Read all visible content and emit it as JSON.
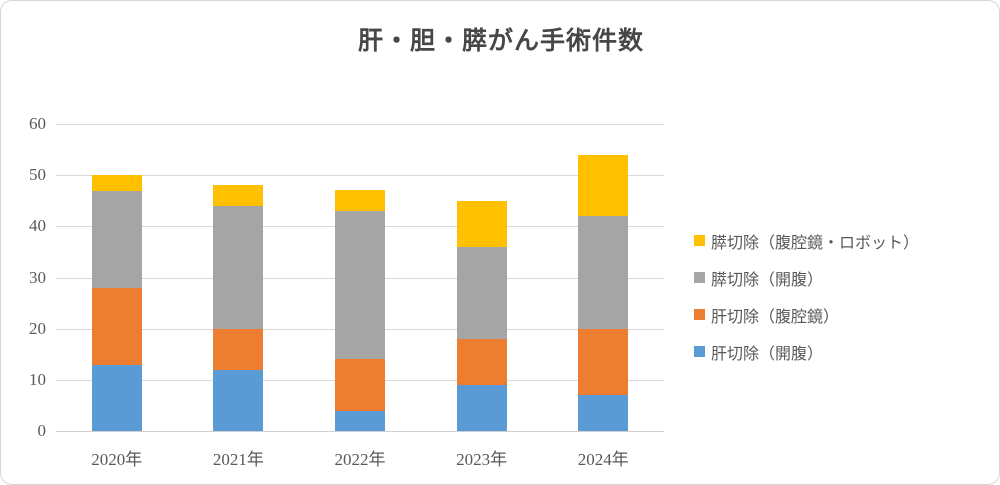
{
  "title": "肝・胆・膵がん手術件数",
  "colors": {
    "blue": "#5B9BD5",
    "orange": "#ED7D31",
    "gray": "#A5A5A5",
    "yellow": "#FFC000",
    "gridline": "#D9D9D9",
    "axis_text": "#595959",
    "title_text": "#474747",
    "frame_border": "#D6D6D6"
  },
  "chart_data": {
    "type": "bar",
    "stacked": true,
    "title": "肝・胆・膵がん手術件数",
    "categories": [
      "2020年",
      "2021年",
      "2022年",
      "2023年",
      "2024年"
    ],
    "series": [
      {
        "name": "肝切除（開腹）",
        "color": "#5B9BD5",
        "values": [
          13,
          12,
          4,
          9,
          7
        ]
      },
      {
        "name": "肝切除（腹腔鏡）",
        "color": "#ED7D31",
        "values": [
          15,
          8,
          10,
          9,
          13
        ]
      },
      {
        "name": "膵切除（開腹）",
        "color": "#A5A5A5",
        "values": [
          19,
          24,
          29,
          18,
          22
        ]
      },
      {
        "name": "膵切除（腹腔鏡・ロボット）",
        "color": "#FFC000",
        "values": [
          3,
          4,
          4,
          9,
          12
        ]
      }
    ],
    "stack_totals": [
      50,
      48,
      47,
      45,
      54
    ],
    "xlabel": "",
    "ylabel": "",
    "ylim": [
      0,
      60
    ],
    "yticks": [
      0,
      10,
      20,
      30,
      40,
      50,
      60
    ],
    "grid": true,
    "legend_position": "right",
    "legend_order_top_to_bottom": [
      "膵切除（腹腔鏡・ロボット）",
      "膵切除（開腹）",
      "肝切除（腹腔鏡）",
      "肝切除（開腹）"
    ]
  }
}
